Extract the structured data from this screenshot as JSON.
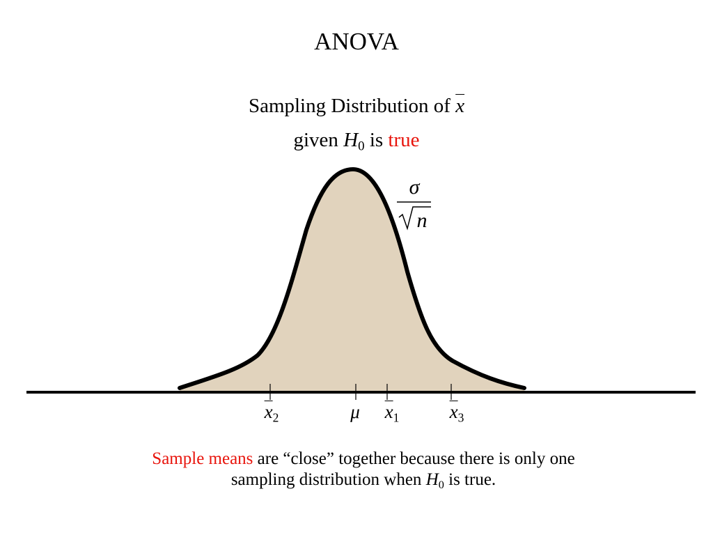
{
  "title": "ANOVA",
  "heading": {
    "line1": {
      "text": "Sampling Distribution of",
      "symbol": "x"
    },
    "line2": {
      "before": "given",
      "symbol": "H",
      "subscript": "0",
      "middle": "is",
      "highlight": "true"
    }
  },
  "curve_label": {
    "numerator": "σ",
    "radicand": "n"
  },
  "axis_labels": [
    {
      "symbol": "x",
      "subscript": "2"
    },
    {
      "symbol": "μ"
    },
    {
      "symbol": "x",
      "subscript": "1"
    },
    {
      "symbol": "x",
      "subscript": "3"
    }
  ],
  "caption": {
    "highlight": "Sample means",
    "line1": "are “close” together because there is only one",
    "line2_before": "sampling distribution when",
    "symbol": "H",
    "subscript": "0",
    "line2_after": "is true."
  }
}
